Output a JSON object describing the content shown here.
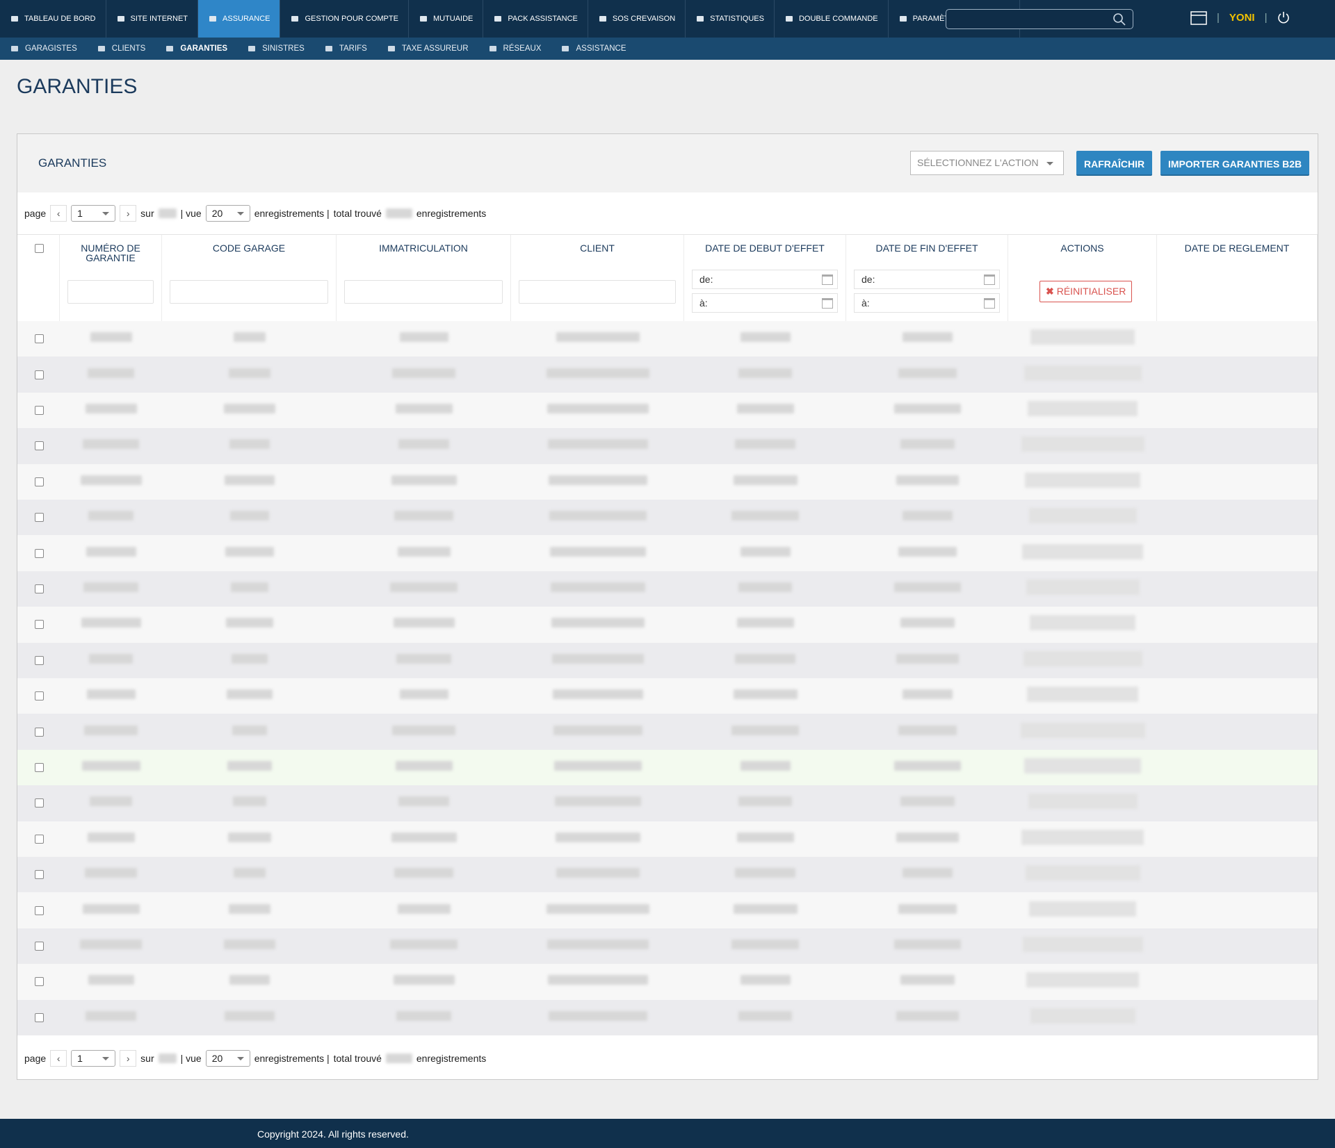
{
  "nav": {
    "main": [
      {
        "label": "TABLEAU DE BORD"
      },
      {
        "label": "SITE INTERNET"
      },
      {
        "label": "ASSURANCE",
        "active": true
      },
      {
        "label": "GESTION POUR COMPTE"
      },
      {
        "label": "MUTUAIDE"
      },
      {
        "label": "PACK ASSISTANCE"
      },
      {
        "label": "SOS CREVAISON"
      },
      {
        "label": "STATISTIQUES"
      },
      {
        "label": "DOUBLE COMMANDE"
      },
      {
        "label": "PARAMÈTRES GÉNÉRAUX"
      }
    ],
    "sub": [
      {
        "label": "GARAGISTES"
      },
      {
        "label": "CLIENTS"
      },
      {
        "label": "GARANTIES",
        "active": true
      },
      {
        "label": "SINISTRES"
      },
      {
        "label": "TARIFS"
      },
      {
        "label": "TAXE ASSUREUR"
      },
      {
        "label": "RÉSEAUX"
      },
      {
        "label": "ASSISTANCE"
      }
    ],
    "user": "YONI"
  },
  "page_title": "GARANTIES",
  "panel": {
    "title": "GARANTIES",
    "action_select": "SÉLECTIONNEZ L'ACTION",
    "buttons": [
      "RAFRAÎCHIR",
      "IMPORTER GARANTIES B2B"
    ]
  },
  "pagination": {
    "page_label": "page",
    "page": 1,
    "of_label": "sur",
    "view_label": "| vue",
    "per_page": 20,
    "records_label": "enregistrements |",
    "total_label": "total trouvé",
    "records_suffix": "enregistrements"
  },
  "table": {
    "columns": [
      "NUMÉRO DE GARANTIE",
      "CODE GARAGE",
      "IMMATRICULATION",
      "CLIENT",
      "DATE DE DEBUT D'EFFET",
      "DATE DE FIN D'EFFET",
      "ACTIONS",
      "DATE DE REGLEMENT"
    ],
    "filters": {
      "from": "de:",
      "to": "à:",
      "reset": "RÉINITIALISER"
    }
  },
  "footer": "Copyright 2024. All rights reserved."
}
